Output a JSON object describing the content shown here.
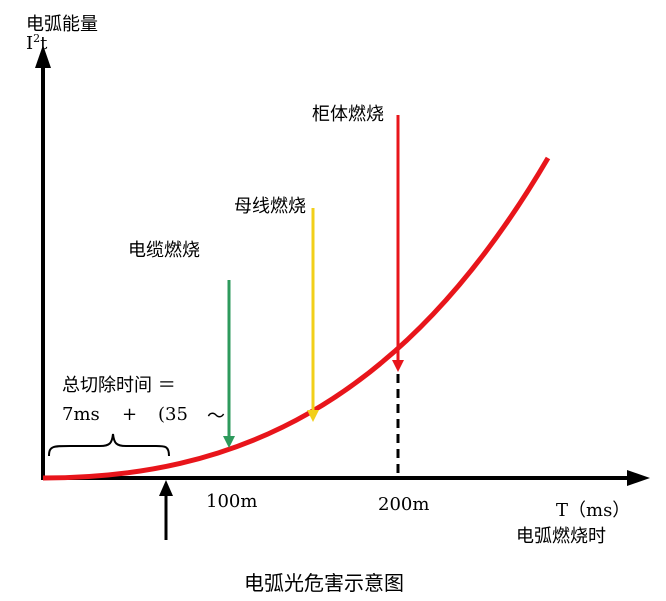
{
  "y_axis": {
    "title": "电弧能量",
    "unit_base": "I",
    "unit_sup": "2",
    "unit_tail": "t"
  },
  "x_axis": {
    "unit": "T（ms）",
    "title": "电弧燃烧时"
  },
  "ticks": [
    {
      "label": "100m"
    },
    {
      "label": "200m"
    }
  ],
  "annotations": [
    {
      "text": "电缆燃烧",
      "color": "#2e9a5c"
    },
    {
      "text": "母线燃烧",
      "color": "#f2cf1a"
    },
    {
      "text": "柜体燃烧",
      "color": "#e8151b"
    }
  ],
  "total_time": {
    "line1": "总切除时间 ＝",
    "line2_a": "7ms",
    "line2_b": "+",
    "line2_c": "(35",
    "line2_d": "～"
  },
  "caption": "电弧光危害示意图",
  "colors": {
    "curve": "#e8151b",
    "axis": "#000000"
  }
}
